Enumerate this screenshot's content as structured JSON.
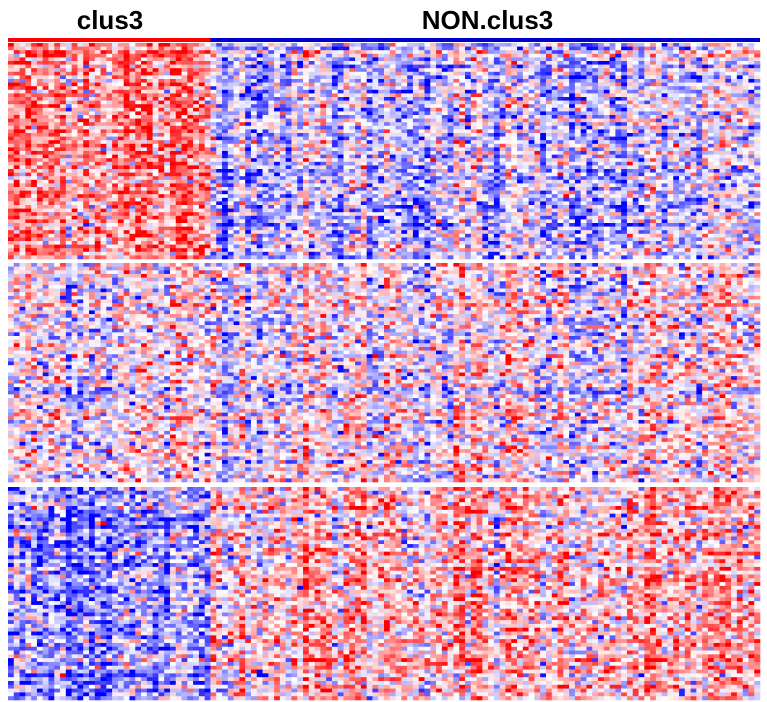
{
  "chart_data": {
    "type": "heatmap",
    "groups": [
      {
        "label": "clus3",
        "n_columns": 35,
        "color": "#ff0000"
      },
      {
        "label": "NON.clus3",
        "n_columns": 95,
        "color": "#0000cc"
      }
    ],
    "row_blocks": [
      {
        "n_rows": 60,
        "clus3_mean": 0.85,
        "non_clus3_mean": -0.45
      },
      {
        "n_rows": 60,
        "clus3_mean": 0.0,
        "non_clus3_mean": 0.05
      },
      {
        "n_rows": 56,
        "clus3_mean": -0.8,
        "non_clus3_mean": 0.5
      }
    ],
    "value_range": [
      -2,
      2
    ],
    "colors": {
      "low": "#0000ff",
      "mid": "#ffffff",
      "high": "#ff0000"
    }
  }
}
